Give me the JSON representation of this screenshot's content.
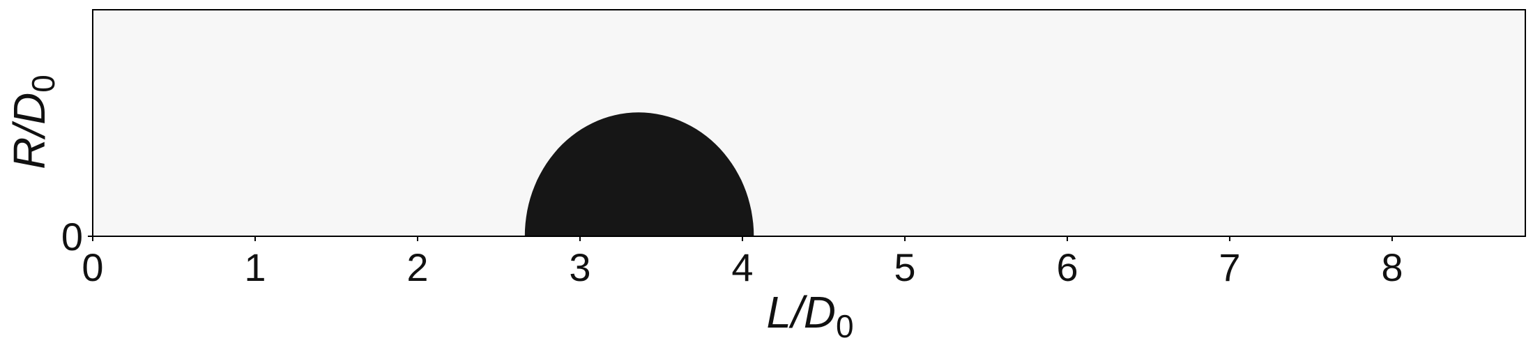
{
  "chart_data": {
    "type": "heatmap",
    "title": "",
    "xlabel": {
      "main": "L/D",
      "sub": "0"
    },
    "ylabel": {
      "main": "R/D",
      "sub": "0"
    },
    "xlim": [
      0,
      8.82
    ],
    "ylim": [
      0,
      1.39
    ],
    "x_ticks": [
      "0",
      "1",
      "2",
      "3",
      "4",
      "5",
      "6",
      "7",
      "8"
    ],
    "y_ticks": [
      "0"
    ],
    "grid": false,
    "legend": "none",
    "background_color": "#f7f7f7",
    "region_color": "#161616",
    "region": {
      "shape": "half-ellipse",
      "x_left": 2.66,
      "x_right": 4.07,
      "peak_x": 3.36,
      "peak_y": 0.76
    }
  }
}
